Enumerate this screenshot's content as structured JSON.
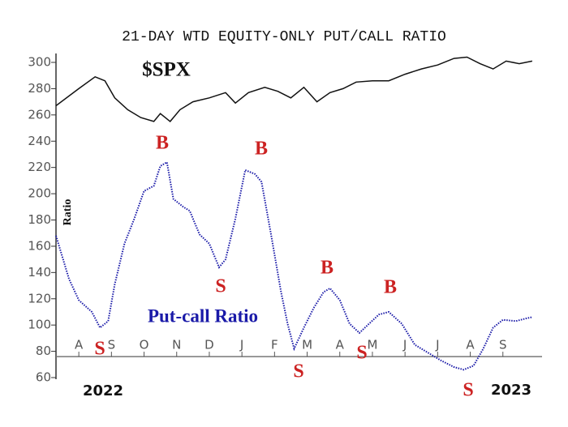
{
  "chart_data": {
    "type": "line",
    "title": "21-DAY WTD EQUITY-ONLY PUT/CALL RATIO",
    "labels": {
      "spx": "$SPX",
      "ratio_axis": "Ratio",
      "ratio_series": "Put-call Ratio",
      "year_start": "2022",
      "year_end": "2023"
    },
    "annotations": [
      "B",
      "B",
      "B",
      "B",
      "S",
      "S",
      "S",
      "S",
      "S"
    ],
    "xlim": [
      -0.2,
      14.7
    ],
    "xticks": [
      {
        "value": 0.5,
        "label": "A"
      },
      {
        "value": 1.5,
        "label": "S"
      },
      {
        "value": 2.5,
        "label": "O"
      },
      {
        "value": 3.5,
        "label": "N"
      },
      {
        "value": 4.5,
        "label": "D"
      },
      {
        "value": 5.5,
        "label": "J"
      },
      {
        "value": 6.5,
        "label": "F"
      },
      {
        "value": 7.5,
        "label": "M"
      },
      {
        "value": 8.5,
        "label": "A"
      },
      {
        "value": 9.5,
        "label": "M"
      },
      {
        "value": 10.5,
        "label": "J"
      },
      {
        "value": 11.5,
        "label": "J"
      },
      {
        "value": 12.5,
        "label": "A"
      },
      {
        "value": 13.5,
        "label": "S"
      }
    ],
    "ylim": [
      60,
      300
    ],
    "yticks": [
      60,
      80,
      100,
      120,
      140,
      160,
      180,
      200,
      220,
      240,
      260,
      280,
      300
    ],
    "reference_line": 76,
    "series": [
      {
        "color": "#111111",
        "dash": false,
        "x": [
          -0.2,
          0.5,
          1.0,
          1.3,
          1.6,
          2.0,
          2.4,
          2.8,
          3.0,
          3.3,
          3.6,
          4.0,
          4.5,
          5.0,
          5.3,
          5.7,
          6.2,
          6.6,
          7.0,
          7.4,
          7.8,
          8.2,
          8.6,
          9.0,
          9.5,
          10.0,
          10.5,
          11.0,
          11.5,
          12.0,
          12.4,
          12.8,
          13.2,
          13.6,
          14.0,
          14.4
        ],
        "values": [
          267,
          280,
          289,
          286,
          273,
          264,
          258,
          255,
          261,
          255,
          264,
          270,
          273,
          277,
          269,
          277,
          281,
          278,
          273,
          281,
          270,
          277,
          280,
          285,
          286,
          286,
          291,
          295,
          298,
          303,
          304,
          299,
          295,
          301,
          299,
          301
        ]
      },
      {
        "color": "#1a1aa8",
        "dash": true,
        "x": [
          -0.2,
          0.2,
          0.5,
          0.9,
          1.15,
          1.4,
          1.6,
          1.9,
          2.2,
          2.5,
          2.8,
          3.0,
          3.2,
          3.4,
          3.7,
          3.9,
          4.2,
          4.5,
          4.8,
          5.0,
          5.3,
          5.6,
          5.9,
          6.1,
          6.4,
          6.7,
          6.9,
          7.1,
          7.4,
          7.7,
          8.0,
          8.2,
          8.5,
          8.8,
          9.1,
          9.4,
          9.7,
          10.0,
          10.4,
          10.8,
          11.2,
          11.6,
          12.0,
          12.3,
          12.6,
          12.9,
          13.2,
          13.5,
          13.9,
          14.2,
          14.4
        ],
        "values": [
          168,
          135,
          119,
          110,
          98,
          103,
          131,
          162,
          181,
          202,
          206,
          221,
          224,
          196,
          190,
          187,
          169,
          162,
          144,
          150,
          181,
          218,
          215,
          209,
          168,
          125,
          101,
          82,
          98,
          113,
          125,
          128,
          119,
          101,
          94,
          101,
          108,
          110,
          101,
          85,
          79,
          73,
          68,
          66,
          69,
          82,
          98,
          104,
          103,
          105,
          106
        ]
      }
    ]
  }
}
